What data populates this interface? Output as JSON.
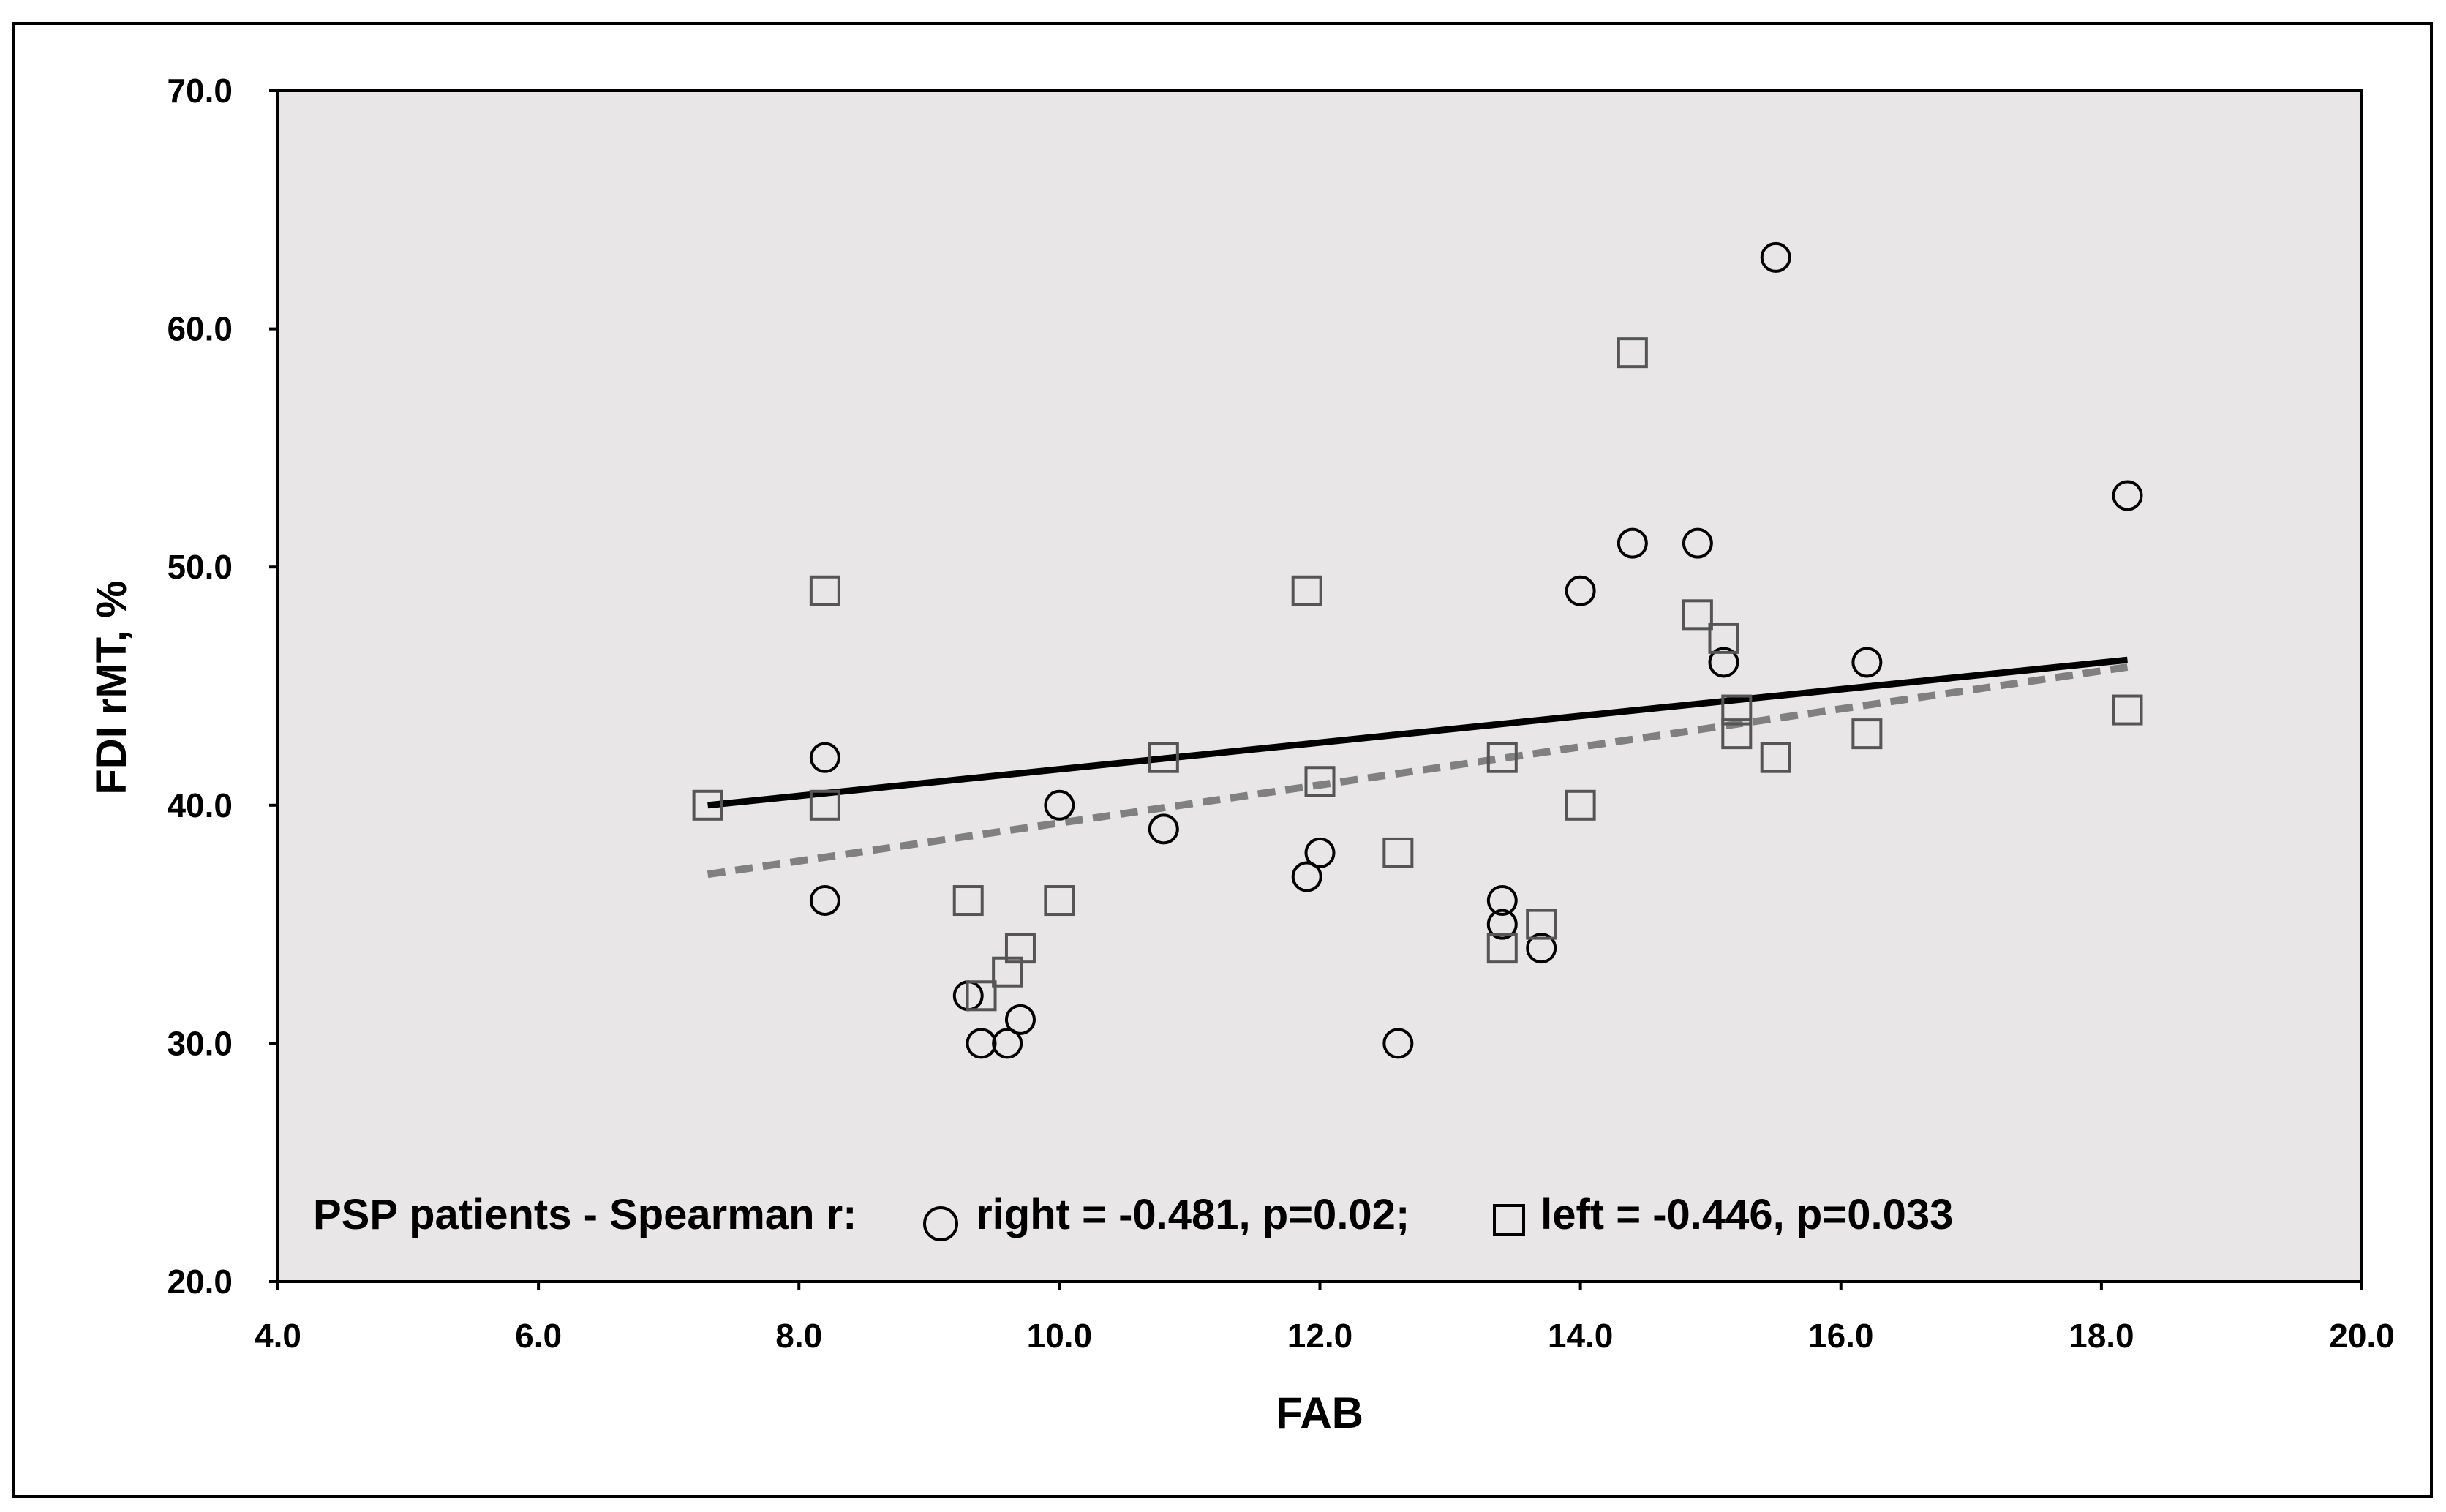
{
  "chart_data": {
    "type": "scatter",
    "title": "",
    "xlabel": "FAB",
    "ylabel": "FDI rMT, %",
    "xlim": [
      4.0,
      20.0
    ],
    "ylim": [
      20.0,
      70.0
    ],
    "x_ticks": [
      "4.0",
      "6.0",
      "8.0",
      "10.0",
      "12.0",
      "14.0",
      "16.0",
      "18.0",
      "20.0"
    ],
    "y_ticks": [
      "20.0",
      "30.0",
      "40.0",
      "50.0",
      "60.0",
      "70.0"
    ],
    "grid": false,
    "plot_background": "#e8e6e7",
    "annotation": {
      "prefix": "PSP patients - Spearman r: ",
      "right_text": " right = -0.481, p=0.02; ",
      "left_text": " left = -0.446, p=0.033"
    },
    "series": [
      {
        "marker": "circle",
        "points": [
          [
            8.2,
            42
          ],
          [
            8.2,
            36
          ],
          [
            9.3,
            32
          ],
          [
            9.4,
            30
          ],
          [
            9.6,
            30
          ],
          [
            9.7,
            31
          ],
          [
            10.0,
            40
          ],
          [
            10.8,
            39
          ],
          [
            11.9,
            37
          ],
          [
            12.0,
            38
          ],
          [
            12.6,
            30
          ],
          [
            13.4,
            36
          ],
          [
            13.4,
            35
          ],
          [
            13.7,
            34
          ],
          [
            14.0,
            49
          ],
          [
            14.4,
            51
          ],
          [
            14.9,
            51
          ],
          [
            15.1,
            46
          ],
          [
            15.5,
            63
          ],
          [
            16.2,
            46
          ],
          [
            18.2,
            53
          ]
        ],
        "trendline": {
          "x": [
            7.3,
            18.2
          ],
          "y": [
            40.0,
            46.1
          ],
          "style": "solid",
          "color": "#000000"
        }
      },
      {
        "marker": "square",
        "points": [
          [
            7.3,
            40
          ],
          [
            8.2,
            49
          ],
          [
            8.2,
            40
          ],
          [
            9.3,
            36
          ],
          [
            9.4,
            32
          ],
          [
            9.6,
            33
          ],
          [
            9.7,
            34
          ],
          [
            10.0,
            36
          ],
          [
            10.8,
            42
          ],
          [
            11.9,
            49
          ],
          [
            12.0,
            41
          ],
          [
            12.6,
            38
          ],
          [
            13.4,
            42
          ],
          [
            13.4,
            34
          ],
          [
            13.7,
            35
          ],
          [
            14.0,
            40
          ],
          [
            14.4,
            59
          ],
          [
            14.9,
            48
          ],
          [
            15.1,
            47
          ],
          [
            15.2,
            44
          ],
          [
            15.2,
            43
          ],
          [
            15.5,
            42
          ],
          [
            16.2,
            43
          ],
          [
            18.2,
            44
          ]
        ],
        "trendline": {
          "x": [
            7.3,
            18.2
          ],
          "y": [
            37.1,
            45.8
          ],
          "style": "dashed",
          "color": "#808080"
        }
      }
    ]
  }
}
